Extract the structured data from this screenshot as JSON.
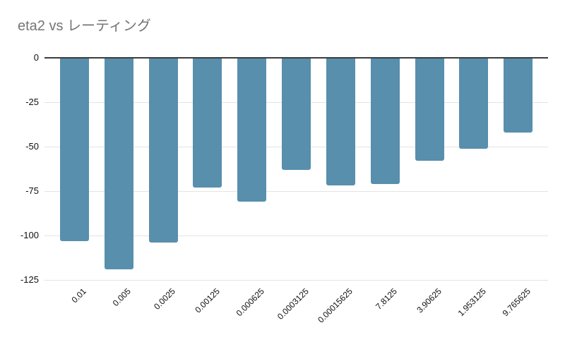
{
  "chart_data": {
    "type": "bar",
    "title": "eta2 vs レーティング",
    "categories": [
      "0.01",
      "0.005",
      "0.0025",
      "0.00125",
      "0.000625",
      "0.0003125",
      "0.00015625",
      "7.8125",
      "3.90625",
      "1.953125",
      "9.765625"
    ],
    "values": [
      -103,
      -119,
      -104,
      -73,
      -81,
      -63,
      -72,
      -71,
      -58,
      -51,
      -42
    ],
    "xlabel": "",
    "ylabel": "",
    "ylim": [
      -125,
      0
    ],
    "yticks": [
      0,
      -25,
      -50,
      -75,
      -100,
      -125
    ],
    "grid": true,
    "legend": "none",
    "orientation": "vertical",
    "colors": {
      "bar": "#588FAD",
      "title": "#757575",
      "axis_labels": "#111111",
      "gridline": "#e3e3e3",
      "zero_line": "#3c3c3c",
      "background": "#ffffff"
    }
  }
}
